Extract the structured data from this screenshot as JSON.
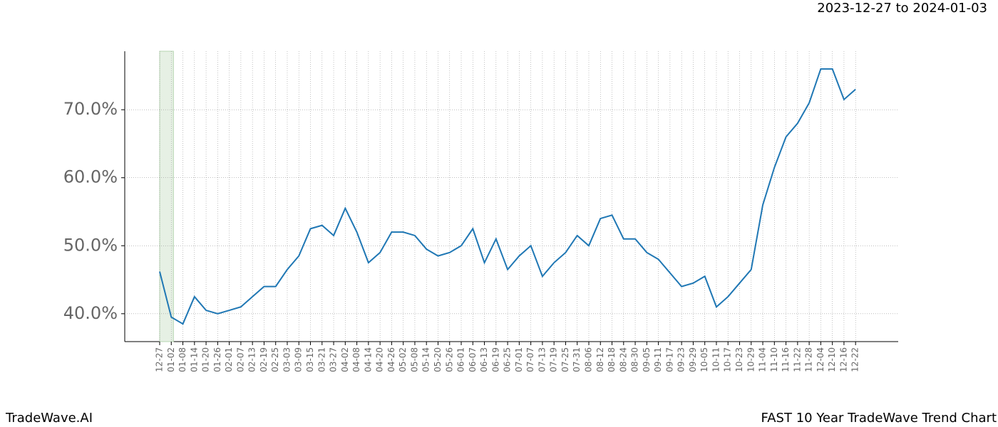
{
  "chart_data": {
    "type": "line",
    "title": "FAST 10 Year TradeWave Trend Chart",
    "subtitle": "2023-12-27 to 2024-01-03",
    "brand": "TradeWave.AI",
    "categories": [
      "12-27",
      "01-02",
      "01-08",
      "01-14",
      "01-20",
      "01-26",
      "02-01",
      "02-07",
      "02-13",
      "02-19",
      "02-25",
      "03-03",
      "03-09",
      "03-15",
      "03-21",
      "03-27",
      "04-02",
      "04-08",
      "04-14",
      "04-20",
      "04-26",
      "05-02",
      "05-08",
      "05-14",
      "05-20",
      "05-26",
      "06-01",
      "06-07",
      "06-13",
      "06-19",
      "06-25",
      "07-01",
      "07-07",
      "07-13",
      "07-19",
      "07-25",
      "07-31",
      "08-06",
      "08-12",
      "08-18",
      "08-24",
      "08-30",
      "09-05",
      "09-11",
      "09-17",
      "09-23",
      "09-29",
      "10-05",
      "10-11",
      "10-17",
      "10-23",
      "10-29",
      "11-04",
      "11-10",
      "11-16",
      "11-22",
      "11-28",
      "12-04",
      "12-10",
      "12-16",
      "12-22"
    ],
    "values": [
      46.2,
      39.5,
      38.5,
      42.5,
      40.5,
      40.0,
      40.5,
      41.0,
      42.5,
      44.0,
      44.0,
      46.5,
      48.5,
      52.5,
      53.0,
      51.5,
      55.5,
      52.0,
      47.5,
      49.0,
      52.0,
      52.0,
      51.5,
      49.5,
      48.5,
      49.0,
      50.0,
      52.5,
      47.5,
      51.0,
      46.5,
      48.5,
      50.0,
      45.5,
      47.5,
      49.0,
      51.5,
      50.0,
      54.0,
      54.5,
      51.0,
      51.0,
      49.0,
      48.0,
      46.0,
      44.0,
      44.5,
      45.5,
      41.0,
      42.5,
      44.5,
      46.5,
      56.0,
      61.5,
      66.0,
      68.0,
      71.0,
      76.0,
      76.0,
      71.5,
      73.0
    ],
    "color": "#1f77b4",
    "ylim": [
      35.9,
      78.6
    ],
    "yticks": [
      {
        "value": 40,
        "label": "40.0%"
      },
      {
        "value": 50,
        "label": "50.0%"
      },
      {
        "value": 60,
        "label": "60.0%"
      },
      {
        "value": 70,
        "label": "70.0%"
      }
    ],
    "grid": true
  }
}
